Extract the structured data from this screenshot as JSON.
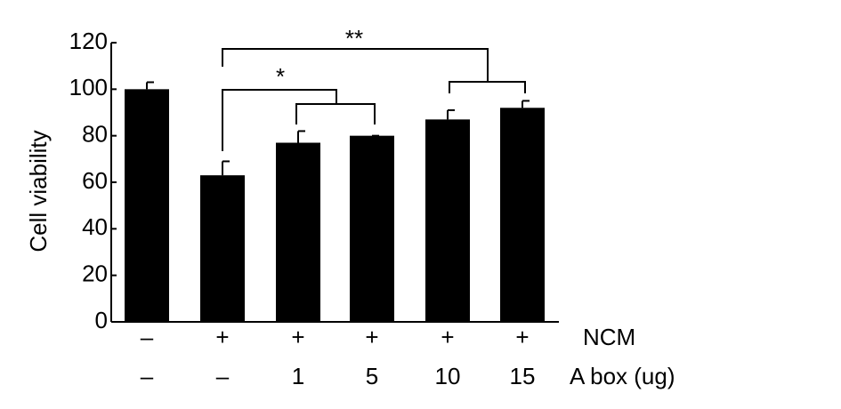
{
  "chart_data": {
    "type": "bar",
    "y_label": "Cell viability",
    "x_label_rows": [
      {
        "name": "NCM",
        "labels": [
          "–",
          "+",
          "+",
          "+",
          "+",
          "+"
        ]
      },
      {
        "name": "A box (ug)",
        "labels": [
          "–",
          "–",
          "1",
          "5",
          "10",
          "15"
        ]
      }
    ],
    "values": [
      100,
      63,
      77,
      80,
      87,
      92
    ],
    "errors": [
      3,
      6,
      5,
      0,
      4,
      3
    ],
    "color": "#000000",
    "ylim": [
      0,
      120
    ],
    "yticks": [
      0,
      20,
      40,
      60,
      80,
      100,
      120
    ],
    "annotations": [
      {
        "text": "*"
      },
      {
        "text": "**"
      }
    ]
  }
}
